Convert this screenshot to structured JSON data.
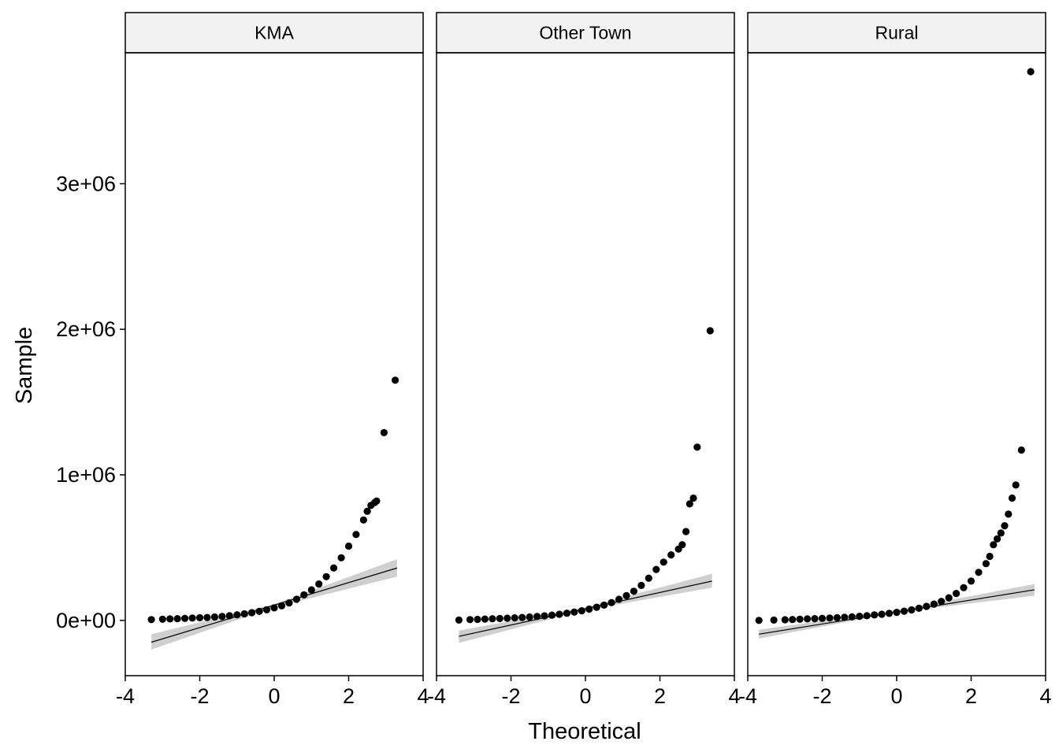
{
  "colors": {
    "points": "#000000",
    "ref_line": "#000000",
    "ribbon": "#bfbfbf",
    "strip_fill": "#f2f2f2",
    "panel_border": "#000000"
  },
  "chart_data": {
    "type": "scatter",
    "subtype": "qq-plot-faceted",
    "xlabel": "Theoretical",
    "ylabel": "Sample",
    "xlim": [
      -4,
      4
    ],
    "ylim": [
      -380000,
      3900000
    ],
    "x_ticks": [
      -4,
      -2,
      0,
      2,
      4
    ],
    "x_tick_labels": [
      "-4",
      "-2",
      "0",
      "2",
      "4"
    ],
    "y_ticks": [
      0,
      1000000,
      2000000,
      3000000
    ],
    "y_tick_labels": [
      "0e+00",
      "1e+06",
      "2e+06",
      "3e+06"
    ],
    "grid": false,
    "legend": "none",
    "panels": [
      {
        "label": "KMA",
        "line": {
          "x": [
            -3.3,
            3.3
          ],
          "y": [
            -150000,
            360000
          ]
        },
        "band": {
          "x": [
            -3.3,
            0,
            3.3
          ],
          "lower": [
            -200000,
            90000,
            300000
          ],
          "upper": [
            -95000,
            110000,
            420000
          ]
        },
        "points": [
          [
            -3.3,
            5000
          ],
          [
            -3.0,
            8000
          ],
          [
            -2.8,
            10000
          ],
          [
            -2.6,
            12000
          ],
          [
            -2.4,
            14000
          ],
          [
            -2.2,
            16000
          ],
          [
            -2.0,
            18000
          ],
          [
            -1.8,
            20000
          ],
          [
            -1.6,
            23000
          ],
          [
            -1.4,
            27000
          ],
          [
            -1.2,
            32000
          ],
          [
            -1.0,
            38000
          ],
          [
            -0.8,
            45000
          ],
          [
            -0.6,
            53000
          ],
          [
            -0.4,
            62000
          ],
          [
            -0.2,
            73000
          ],
          [
            0.0,
            86000
          ],
          [
            0.2,
            100000
          ],
          [
            0.4,
            120000
          ],
          [
            0.6,
            145000
          ],
          [
            0.8,
            175000
          ],
          [
            1.0,
            210000
          ],
          [
            1.2,
            250000
          ],
          [
            1.4,
            300000
          ],
          [
            1.6,
            360000
          ],
          [
            1.8,
            430000
          ],
          [
            2.0,
            510000
          ],
          [
            2.2,
            590000
          ],
          [
            2.4,
            690000
          ],
          [
            2.5,
            750000
          ],
          [
            2.6,
            790000
          ],
          [
            2.7,
            810000
          ],
          [
            2.75,
            820000
          ],
          [
            2.95,
            1290000
          ],
          [
            3.25,
            1650000
          ]
        ]
      },
      {
        "label": "Other Town",
        "line": {
          "x": [
            -3.4,
            3.4
          ],
          "y": [
            -110000,
            270000
          ]
        },
        "band": {
          "x": [
            -3.4,
            0,
            3.4
          ],
          "lower": [
            -155000,
            70000,
            225000
          ],
          "upper": [
            -70000,
            90000,
            320000
          ]
        },
        "points": [
          [
            -3.4,
            2000
          ],
          [
            -3.1,
            5000
          ],
          [
            -2.9,
            7000
          ],
          [
            -2.7,
            9000
          ],
          [
            -2.5,
            11000
          ],
          [
            -2.3,
            13000
          ],
          [
            -2.1,
            15000
          ],
          [
            -1.9,
            17000
          ],
          [
            -1.7,
            20000
          ],
          [
            -1.5,
            23000
          ],
          [
            -1.3,
            27000
          ],
          [
            -1.1,
            31000
          ],
          [
            -0.9,
            36000
          ],
          [
            -0.7,
            42000
          ],
          [
            -0.5,
            49000
          ],
          [
            -0.3,
            57000
          ],
          [
            -0.1,
            66000
          ],
          [
            0.1,
            77000
          ],
          [
            0.3,
            90000
          ],
          [
            0.5,
            105000
          ],
          [
            0.7,
            122000
          ],
          [
            0.9,
            145000
          ],
          [
            1.1,
            170000
          ],
          [
            1.3,
            200000
          ],
          [
            1.5,
            240000
          ],
          [
            1.7,
            290000
          ],
          [
            1.9,
            350000
          ],
          [
            2.1,
            400000
          ],
          [
            2.3,
            450000
          ],
          [
            2.5,
            490000
          ],
          [
            2.6,
            520000
          ],
          [
            2.7,
            610000
          ],
          [
            2.8,
            800000
          ],
          [
            2.9,
            840000
          ],
          [
            3.0,
            1190000
          ],
          [
            3.35,
            1990000
          ]
        ]
      },
      {
        "label": "Rural",
        "line": {
          "x": [
            -3.7,
            3.7
          ],
          "y": [
            -95000,
            210000
          ]
        },
        "band": {
          "x": [
            -3.7,
            0,
            3.7
          ],
          "lower": [
            -125000,
            55000,
            170000
          ],
          "upper": [
            -65000,
            70000,
            250000
          ]
        },
        "points": [
          [
            -3.7,
            0
          ],
          [
            -3.3,
            2000
          ],
          [
            -3.0,
            4000
          ],
          [
            -2.8,
            6000
          ],
          [
            -2.6,
            8000
          ],
          [
            -2.4,
            10000
          ],
          [
            -2.2,
            12000
          ],
          [
            -2.0,
            14000
          ],
          [
            -1.8,
            16000
          ],
          [
            -1.6,
            18000
          ],
          [
            -1.4,
            21000
          ],
          [
            -1.2,
            24000
          ],
          [
            -1.0,
            28000
          ],
          [
            -0.8,
            32000
          ],
          [
            -0.6,
            37000
          ],
          [
            -0.4,
            42000
          ],
          [
            -0.2,
            48000
          ],
          [
            0.0,
            55000
          ],
          [
            0.2,
            63000
          ],
          [
            0.4,
            72000
          ],
          [
            0.6,
            83000
          ],
          [
            0.8,
            96000
          ],
          [
            1.0,
            112000
          ],
          [
            1.2,
            130000
          ],
          [
            1.4,
            155000
          ],
          [
            1.6,
            185000
          ],
          [
            1.8,
            225000
          ],
          [
            2.0,
            270000
          ],
          [
            2.2,
            330000
          ],
          [
            2.4,
            390000
          ],
          [
            2.5,
            440000
          ],
          [
            2.6,
            520000
          ],
          [
            2.7,
            560000
          ],
          [
            2.8,
            600000
          ],
          [
            2.9,
            650000
          ],
          [
            3.0,
            730000
          ],
          [
            3.1,
            840000
          ],
          [
            3.2,
            930000
          ],
          [
            3.35,
            1170000
          ],
          [
            3.6,
            3770000
          ]
        ]
      }
    ]
  }
}
